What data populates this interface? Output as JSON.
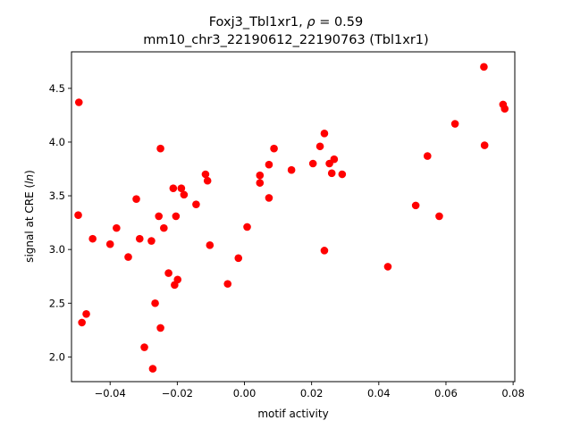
{
  "chart_data": {
    "type": "scatter",
    "title_line1": "Foxj3_Tbl1xr1, ",
    "title_rho_symbol": "ρ",
    "title_rho_value": " = 0.59",
    "title_line2": "mm10_chr3_22190612_22190763 (Tbl1xr1)",
    "xlabel": "motif activity",
    "ylabel_prefix": "signal at CRE (",
    "ylabel_italic": "ln",
    "ylabel_suffix": ")",
    "xlim": [
      -0.0515,
      0.0805
    ],
    "ylim": [
      1.77,
      4.84
    ],
    "xticks": [
      -0.04,
      -0.02,
      0.0,
      0.02,
      0.04,
      0.06,
      0.08
    ],
    "xtick_labels": [
      "−0.04",
      "−0.02",
      "0.00",
      "0.02",
      "0.04",
      "0.06",
      "0.08"
    ],
    "yticks": [
      2.0,
      2.5,
      3.0,
      3.5,
      4.0,
      4.5
    ],
    "ytick_labels": [
      "2.0",
      "2.5",
      "3.0",
      "3.5",
      "4.0",
      "4.5"
    ],
    "marker_color": "#ff0000",
    "grid": false,
    "legend": false,
    "points": [
      {
        "x": -0.0493,
        "y": 4.37
      },
      {
        "x": -0.0495,
        "y": 3.32
      },
      {
        "x": -0.0484,
        "y": 2.32
      },
      {
        "x": -0.0471,
        "y": 2.4
      },
      {
        "x": -0.0452,
        "y": 3.1
      },
      {
        "x": -0.04,
        "y": 3.05
      },
      {
        "x": -0.0381,
        "y": 3.2
      },
      {
        "x": -0.0346,
        "y": 2.93
      },
      {
        "x": -0.0322,
        "y": 3.47
      },
      {
        "x": -0.0312,
        "y": 3.1
      },
      {
        "x": -0.0298,
        "y": 2.09
      },
      {
        "x": -0.0277,
        "y": 3.08
      },
      {
        "x": -0.0273,
        "y": 1.89
      },
      {
        "x": -0.0266,
        "y": 2.5
      },
      {
        "x": -0.0255,
        "y": 3.31
      },
      {
        "x": -0.025,
        "y": 3.94
      },
      {
        "x": -0.025,
        "y": 2.27
      },
      {
        "x": -0.024,
        "y": 3.2
      },
      {
        "x": -0.0226,
        "y": 2.78
      },
      {
        "x": -0.0212,
        "y": 3.57
      },
      {
        "x": -0.0208,
        "y": 2.67
      },
      {
        "x": -0.0204,
        "y": 3.31
      },
      {
        "x": -0.0199,
        "y": 2.72
      },
      {
        "x": -0.0188,
        "y": 3.57
      },
      {
        "x": -0.018,
        "y": 3.51
      },
      {
        "x": -0.0144,
        "y": 3.42
      },
      {
        "x": -0.0116,
        "y": 3.7
      },
      {
        "x": -0.011,
        "y": 3.64
      },
      {
        "x": -0.0103,
        "y": 3.04
      },
      {
        "x": -0.005,
        "y": 2.68
      },
      {
        "x": -0.0018,
        "y": 2.92
      },
      {
        "x": 0.0008,
        "y": 3.21
      },
      {
        "x": 0.0046,
        "y": 3.69
      },
      {
        "x": 0.0046,
        "y": 3.62
      },
      {
        "x": 0.0073,
        "y": 3.79
      },
      {
        "x": 0.0073,
        "y": 3.48
      },
      {
        "x": 0.0088,
        "y": 3.94
      },
      {
        "x": 0.014,
        "y": 3.74
      },
      {
        "x": 0.0204,
        "y": 3.8
      },
      {
        "x": 0.0225,
        "y": 3.96
      },
      {
        "x": 0.0238,
        "y": 4.08
      },
      {
        "x": 0.0238,
        "y": 2.99
      },
      {
        "x": 0.0253,
        "y": 3.8
      },
      {
        "x": 0.026,
        "y": 3.71
      },
      {
        "x": 0.0267,
        "y": 3.84
      },
      {
        "x": 0.0291,
        "y": 3.7
      },
      {
        "x": 0.0427,
        "y": 2.84
      },
      {
        "x": 0.051,
        "y": 3.41
      },
      {
        "x": 0.0545,
        "y": 3.87
      },
      {
        "x": 0.058,
        "y": 3.31
      },
      {
        "x": 0.0627,
        "y": 4.17
      },
      {
        "x": 0.0713,
        "y": 4.7
      },
      {
        "x": 0.0715,
        "y": 3.97
      },
      {
        "x": 0.077,
        "y": 4.35
      },
      {
        "x": 0.0775,
        "y": 4.31
      }
    ]
  }
}
